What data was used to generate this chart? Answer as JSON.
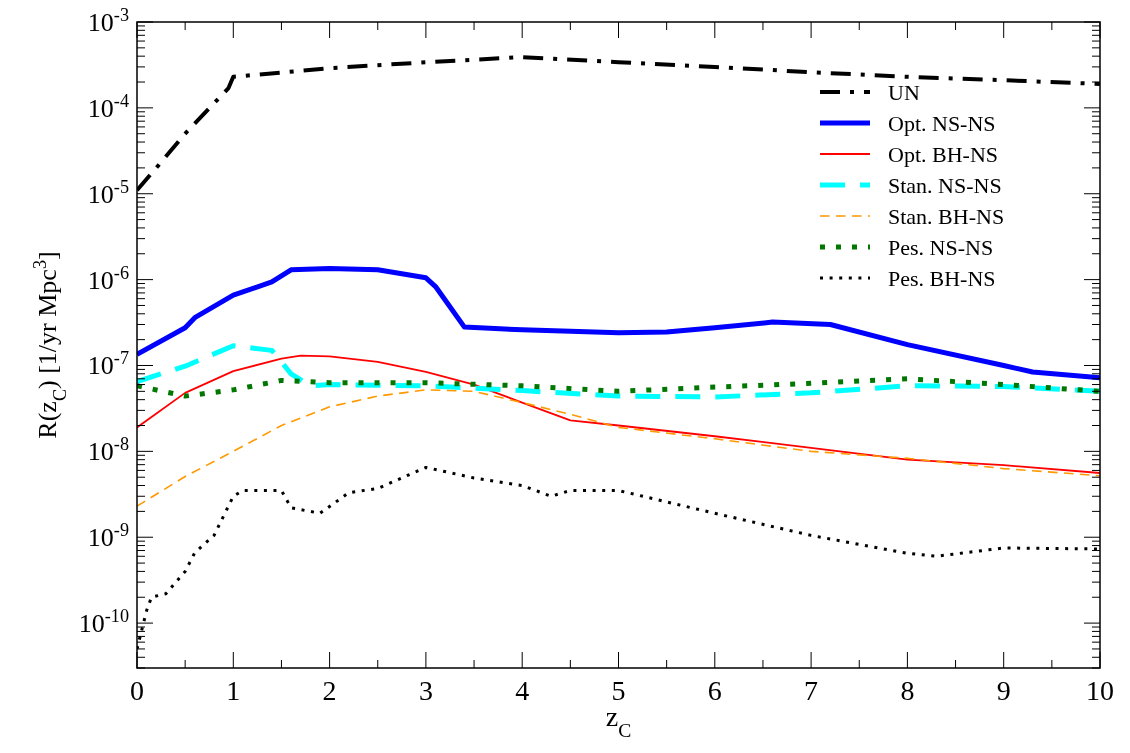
{
  "chart_data": {
    "type": "line",
    "xlabel": "z$_{C}$",
    "ylabel": "R(z$_{C}$) [1/yr Mpc$^{3}$]",
    "log": "y",
    "grid": false,
    "legend": "top right",
    "xlim": [
      0,
      10
    ],
    "ylim": [
      3e-11,
      0.001
    ],
    "xticks": [
      0,
      {
        "value": 0.5,
        "label": null
      },
      1,
      {
        "value": 1.5,
        "label": null
      },
      2,
      {
        "value": 2.5,
        "label": null
      },
      3,
      {
        "value": 3.5,
        "label": null
      },
      4,
      {
        "value": 4.5,
        "label": null
      },
      5,
      {
        "value": 5.5,
        "label": null
      },
      6,
      {
        "value": 6.5,
        "label": null
      },
      7,
      {
        "value": 7.5,
        "label": null
      },
      8,
      {
        "value": 8.5,
        "label": null
      },
      9,
      {
        "value": 9.5,
        "label": null
      },
      10
    ],
    "yticks": [
      {
        "value": 1e-10,
        "label": "10$^{-10}$"
      },
      {
        "value": 1e-09,
        "label": "10$^{-9}$"
      },
      {
        "value": 1e-08,
        "label": "10$^{-8}$"
      },
      {
        "value": 1e-07,
        "label": "10$^{-7}$"
      },
      {
        "value": 1e-06,
        "label": "10$^{-6}$"
      },
      {
        "value": 1e-05,
        "label": "10$^{-5}$"
      },
      {
        "value": 0.0001,
        "label": "10$^{-4}$"
      },
      {
        "value": 0.001,
        "label": "10$^{-3}$"
      }
    ],
    "series": [
      {
        "name": "UN",
        "color": "#000000",
        "line_style": "dashdot",
        "x": [
          0,
          0.2,
          0.5,
          0.95,
          1,
          2,
          3,
          4,
          5,
          6,
          7,
          8,
          9,
          10
        ],
        "values": [
          1.1e-05,
          2e-05,
          5e-05,
          0.00017,
          0.00023,
          0.00029,
          0.00034,
          0.00039,
          0.00034,
          0.0003,
          0.00026,
          0.00023,
          0.00021,
          0.00019
        ]
      },
      {
        "name": "Opt. NS-NS",
        "color": "#0000ff",
        "line_style": "solid",
        "x": [
          0,
          0.5,
          0.6,
          1,
          1.4,
          1.6,
          2,
          2.5,
          3,
          3.1,
          3.4,
          4,
          4.5,
          5,
          5.5,
          6,
          6.6,
          7.2,
          8,
          9,
          9.3,
          10
        ],
        "values": [
          1.35e-07,
          2.75e-07,
          3.6e-07,
          6.6e-07,
          9.4e-07,
          1.3e-06,
          1.35e-06,
          1.3e-06,
          1.05e-06,
          8.3e-07,
          2.8e-07,
          2.6e-07,
          2.5e-07,
          2.4e-07,
          2.45e-07,
          2.75e-07,
          3.2e-07,
          3e-07,
          1.75e-07,
          1e-07,
          8.4e-08,
          7.2e-08
        ]
      },
      {
        "name": "Opt. BH-NS",
        "color": "#ff0000",
        "line_style": "solid",
        "x": [
          0,
          0.5,
          1,
          1.5,
          1.7,
          2,
          2.5,
          3,
          3.5,
          4,
          4.5,
          5,
          6,
          7,
          8,
          9,
          10
        ],
        "values": [
          1.9e-08,
          4.8e-08,
          8.6e-08,
          1.2e-07,
          1.3e-07,
          1.28e-07,
          1.1e-07,
          8.4e-08,
          6e-08,
          3.7e-08,
          2.3e-08,
          2e-08,
          1.5e-08,
          1.1e-08,
          8e-09,
          6.9e-09,
          5.6e-09
        ]
      },
      {
        "name": "Stan. NS-NS",
        "color": "#00ffff",
        "line_style": "dashed",
        "x": [
          0,
          0.5,
          1,
          1.4,
          1.6,
          1.8,
          2,
          3,
          4,
          5,
          6,
          7,
          8,
          9,
          10
        ],
        "values": [
          6.5e-08,
          9.8e-08,
          1.7e-07,
          1.5e-07,
          8e-08,
          5.8e-08,
          6e-08,
          5.8e-08,
          5.1e-08,
          4.4e-08,
          4.3e-08,
          4.8e-08,
          5.8e-08,
          5.7e-08,
          5e-08
        ]
      },
      {
        "name": "Stan. BH-NS",
        "color": "#ff9900",
        "line_style": "dashed",
        "x": [
          0,
          0.5,
          1,
          1.5,
          2,
          2.5,
          3,
          3.5,
          4,
          4.5,
          5,
          6,
          7,
          8,
          9,
          10
        ],
        "values": [
          2.3e-09,
          5.1e-09,
          1e-08,
          2e-08,
          3.3e-08,
          4.4e-08,
          5.2e-08,
          5e-08,
          3.7e-08,
          2.7e-08,
          1.9e-08,
          1.4e-08,
          1e-08,
          8.3e-09,
          6.3e-09,
          5.2e-09
        ]
      },
      {
        "name": "Pes. NS-NS",
        "color": "#007700",
        "line_style": "dotted",
        "x": [
          0,
          0.5,
          1,
          1.5,
          2,
          3,
          4,
          5,
          6,
          7,
          8,
          9,
          10
        ],
        "values": [
          5.8e-08,
          4.4e-08,
          5.2e-08,
          6.7e-08,
          6.3e-08,
          6.3e-08,
          5.8e-08,
          5e-08,
          5.6e-08,
          6.2e-08,
          7e-08,
          6e-08,
          5e-08
        ]
      },
      {
        "name": "Pes. BH-NS",
        "color": "#000000",
        "line_style": "dotted",
        "x": [
          0,
          0.1,
          0.15,
          0.3,
          0.5,
          0.6,
          0.8,
          1,
          1.1,
          1.5,
          1.6,
          1.9,
          2.2,
          2.5,
          3,
          3.5,
          4,
          4.3,
          4.5,
          5,
          6,
          7,
          8,
          8.3,
          9,
          10
        ],
        "values": [
          5e-11,
          1.4e-10,
          2e-10,
          2.2e-10,
          4e-10,
          6.6e-10,
          1.05e-09,
          3e-09,
          3.5e-09,
          3.5e-09,
          2.2e-09,
          1.9e-09,
          3.3e-09,
          3.7e-09,
          6.5e-09,
          4.9e-09,
          4e-09,
          3e-09,
          3.5e-09,
          3.5e-09,
          1.9e-09,
          1.05e-09,
          6.5e-10,
          6e-10,
          7.5e-10,
          7.3e-10
        ]
      }
    ]
  }
}
